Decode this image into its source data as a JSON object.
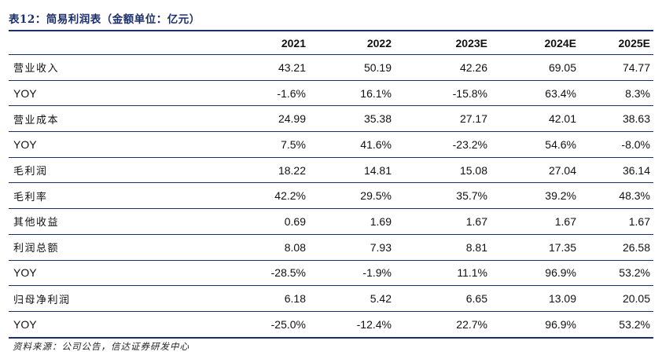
{
  "title": "表12：简易利润表（金额单位：亿元）",
  "table": {
    "headers": [
      "",
      "2021",
      "2022",
      "2023E",
      "2024E",
      "2025E"
    ],
    "rows": [
      {
        "label": "营业收入",
        "values": [
          "43.21",
          "50.19",
          "42.26",
          "69.05",
          "74.77"
        ]
      },
      {
        "label": "YOY",
        "values": [
          "-1.6%",
          "16.1%",
          "-15.8%",
          "63.4%",
          "8.3%"
        ]
      },
      {
        "label": "营业成本",
        "values": [
          "24.99",
          "35.38",
          "27.17",
          "42.01",
          "38.63"
        ]
      },
      {
        "label": "YOY",
        "values": [
          "7.5%",
          "41.6%",
          "-23.2%",
          "54.6%",
          "-8.0%"
        ]
      },
      {
        "label": "毛利润",
        "values": [
          "18.22",
          "14.81",
          "15.08",
          "27.04",
          "36.14"
        ]
      },
      {
        "label": "毛利率",
        "values": [
          "42.2%",
          "29.5%",
          "35.7%",
          "39.2%",
          "48.3%"
        ]
      },
      {
        "label": "其他收益",
        "values": [
          "0.69",
          "1.69",
          "1.67",
          "1.67",
          "1.67"
        ]
      },
      {
        "label": "利润总额",
        "values": [
          "8.08",
          "7.93",
          "8.81",
          "17.35",
          "26.58"
        ]
      },
      {
        "label": "YOY",
        "values": [
          "-28.5%",
          "-1.9%",
          "11.1%",
          "96.9%",
          "53.2%"
        ]
      },
      {
        "label": "归母净利润",
        "values": [
          "6.18",
          "5.42",
          "6.65",
          "13.09",
          "20.05"
        ]
      },
      {
        "label": "YOY",
        "values": [
          "-25.0%",
          "-12.4%",
          "22.7%",
          "96.9%",
          "53.2%"
        ]
      }
    ]
  },
  "source": "资料来源：公司公告，信达证券研发中心",
  "colors": {
    "accent": "#1c2f6b",
    "text": "#111111"
  }
}
